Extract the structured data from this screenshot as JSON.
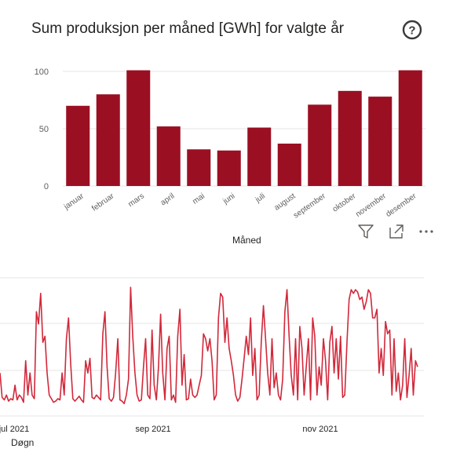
{
  "visual_header": {
    "filter_icon": "filter-icon",
    "focus_mode_icon": "focus-mode-icon",
    "more_options_icon": "more-options-icon",
    "help_icon": "help-icon"
  },
  "chart_data": [
    {
      "type": "bar",
      "title": "Sum produksjon per måned [GWh] for valgte år",
      "xlabel": "Måned",
      "ylabel": "",
      "categories": [
        "januar",
        "februar",
        "mars",
        "april",
        "mai",
        "juni",
        "juli",
        "august",
        "september",
        "oktober",
        "november",
        "desember"
      ],
      "values": [
        70,
        80,
        101,
        52,
        32,
        31,
        51,
        37,
        71,
        83,
        78,
        101
      ],
      "ylim": [
        0,
        100
      ],
      "yticks": [
        0,
        50,
        100
      ],
      "bar_color": "#9B0F22",
      "grid": true
    },
    {
      "type": "line",
      "title": "",
      "xlabel": "Døgn",
      "ylabel": "",
      "xticks": [
        "jul 2021",
        "sep 2021",
        "nov 2021"
      ],
      "series_color": "#D2283A",
      "grid": true,
      "ylim": [
        0,
        100
      ],
      "values": [
        30,
        10,
        8,
        12,
        7,
        9,
        8,
        20,
        8,
        12,
        10,
        6,
        40,
        12,
        30,
        12,
        9,
        80,
        70,
        95,
        55,
        60,
        30,
        12,
        9,
        6,
        7,
        9,
        8,
        30,
        12,
        58,
        75,
        38,
        9,
        7,
        9,
        11,
        8,
        6,
        40,
        30,
        42,
        10,
        9,
        12,
        10,
        8,
        62,
        80,
        35,
        9,
        7,
        10,
        30,
        58,
        8,
        7,
        5,
        12,
        25,
        100,
        60,
        30,
        12,
        7,
        8,
        35,
        58,
        12,
        9,
        65,
        20,
        8,
        35,
        78,
        30,
        8,
        50,
        60,
        8,
        12,
        6,
        60,
        82,
        20,
        45,
        8,
        9,
        25,
        12,
        10,
        12,
        20,
        28,
        62,
        58,
        48,
        58,
        40,
        8,
        12,
        75,
        95,
        92,
        55,
        75,
        50,
        40,
        28,
        12,
        7,
        10,
        25,
        42,
        60,
        45,
        75,
        28,
        50,
        8,
        12,
        55,
        85,
        58,
        30,
        12,
        58,
        18,
        30,
        12,
        8,
        25,
        80,
        98,
        60,
        28,
        12,
        58,
        8,
        68,
        50,
        12,
        35,
        58,
        8,
        75,
        60,
        12,
        35,
        20,
        58,
        40,
        8,
        55,
        68,
        30,
        58,
        25,
        60,
        10,
        12,
        55,
        90,
        98,
        95,
        98,
        96,
        90,
        92,
        82,
        88,
        98,
        95,
        75,
        75,
        82,
        30,
        50,
        28,
        72,
        62,
        65,
        12,
        58,
        15,
        30,
        8,
        20,
        58,
        10,
        28,
        50,
        12,
        40,
        35
      ],
      "xtick_positions": [
        0.03,
        0.325,
        0.68
      ]
    }
  ]
}
